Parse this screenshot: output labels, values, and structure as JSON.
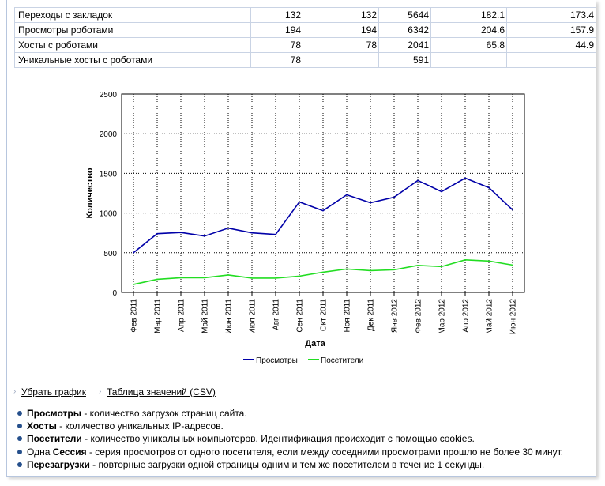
{
  "table": {
    "rows": [
      {
        "label": "Переходы с закладок",
        "c1": "132",
        "c2": "132",
        "c3": "5644",
        "c4": "182.1",
        "c5": "173.4"
      },
      {
        "label": "Просмотры роботами",
        "c1": "194",
        "c2": "194",
        "c3": "6342",
        "c4": "204.6",
        "c5": "157.9"
      },
      {
        "label": "Хосты с роботами",
        "c1": "78",
        "c2": "78",
        "c3": "2041",
        "c4": "65.8",
        "c5": "44.9"
      },
      {
        "label": "Уникальные хосты с роботами",
        "c1": "78",
        "c2": "",
        "c3": "591",
        "c4": "",
        "c5": ""
      }
    ]
  },
  "chart_data": {
    "type": "line",
    "title": "",
    "xlabel": "Дата",
    "ylabel": "Количество",
    "ylim": [
      0,
      2500
    ],
    "yticks": [
      0,
      500,
      1000,
      1500,
      2000,
      2500
    ],
    "grid": true,
    "legend_position": "bottom",
    "categories": [
      "Фев 2011",
      "Мар 2011",
      "Апр 2011",
      "Май 2011",
      "Июн 2011",
      "Июл 2011",
      "Авг 2011",
      "Сен 2011",
      "Окт 2011",
      "Ноя 2011",
      "Дек 2011",
      "Янв 2012",
      "Фев 2012",
      "Мар 2012",
      "Апр 2012",
      "Май 2012",
      "Июн 2012"
    ],
    "series": [
      {
        "name": "Просмотры",
        "color": "#0000a8",
        "values": [
          500,
          740,
          755,
          710,
          810,
          750,
          730,
          1140,
          1030,
          1230,
          1130,
          1200,
          1410,
          1270,
          1440,
          1320,
          1040
        ]
      },
      {
        "name": "Посетители",
        "color": "#22dd22",
        "values": [
          100,
          165,
          185,
          185,
          220,
          180,
          180,
          205,
          255,
          295,
          275,
          285,
          340,
          325,
          410,
          395,
          345
        ]
      }
    ]
  },
  "links": {
    "remove_chart": "Убрать график",
    "csv_table": "Таблица значений (CSV)"
  },
  "notes": [
    {
      "term": "Просмотры",
      "prefix": "",
      "text": " - количество загрузок страниц сайта."
    },
    {
      "term": "Хосты",
      "prefix": "",
      "text": " - количество уникальных IP-адресов."
    },
    {
      "term": "Посетители",
      "prefix": "",
      "text": " - количество уникальных компьютеров. Идентификация происходит с помощью cookies."
    },
    {
      "term": "Сессия",
      "prefix": "Одна ",
      "text": " - серия просмотров от одного посетителя, если между соседними просмотрами прошло не более 30 минут."
    },
    {
      "term": "Перезагрузки",
      "prefix": "",
      "text": " - повторные загрузки одной страницы одним и тем же посетителем в течение 1 секунды."
    }
  ],
  "colors": {
    "bullet": "#26508c",
    "border": "#c9d3e4"
  }
}
